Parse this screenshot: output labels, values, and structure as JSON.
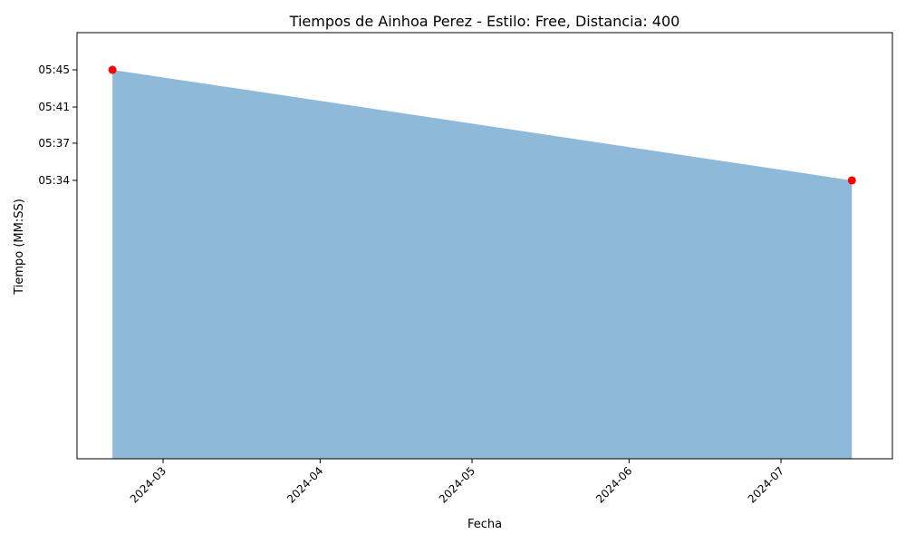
{
  "chart_data": {
    "type": "area",
    "title": "Tiempos de Ainhoa Perez - Estilo: Free, Distancia: 400",
    "xlabel": "Fecha",
    "ylabel": "Tiempo (MM:SS)",
    "x": [
      "2024-02-20",
      "2024-07-15"
    ],
    "series": [
      {
        "values": [
          "05:45",
          "05:34"
        ],
        "values_seconds": [
          345,
          334
        ]
      }
    ],
    "xticks": [
      "2024-03",
      "2024-04",
      "2024-05",
      "2024-06",
      "2024-07"
    ],
    "yticks": [
      "05:34",
      "05:37",
      "05:41",
      "05:45"
    ],
    "yticks_seconds": [
      334,
      337.7,
      341.3,
      345
    ],
    "xlim": [
      "2024-02-13",
      "2024-07-23"
    ],
    "ylim_seconds": [
      306.3,
      348.7
    ],
    "grid": false,
    "colors": {
      "fill": "#8fb9d9",
      "marker": "#ff0000",
      "axes": "#000000"
    }
  }
}
